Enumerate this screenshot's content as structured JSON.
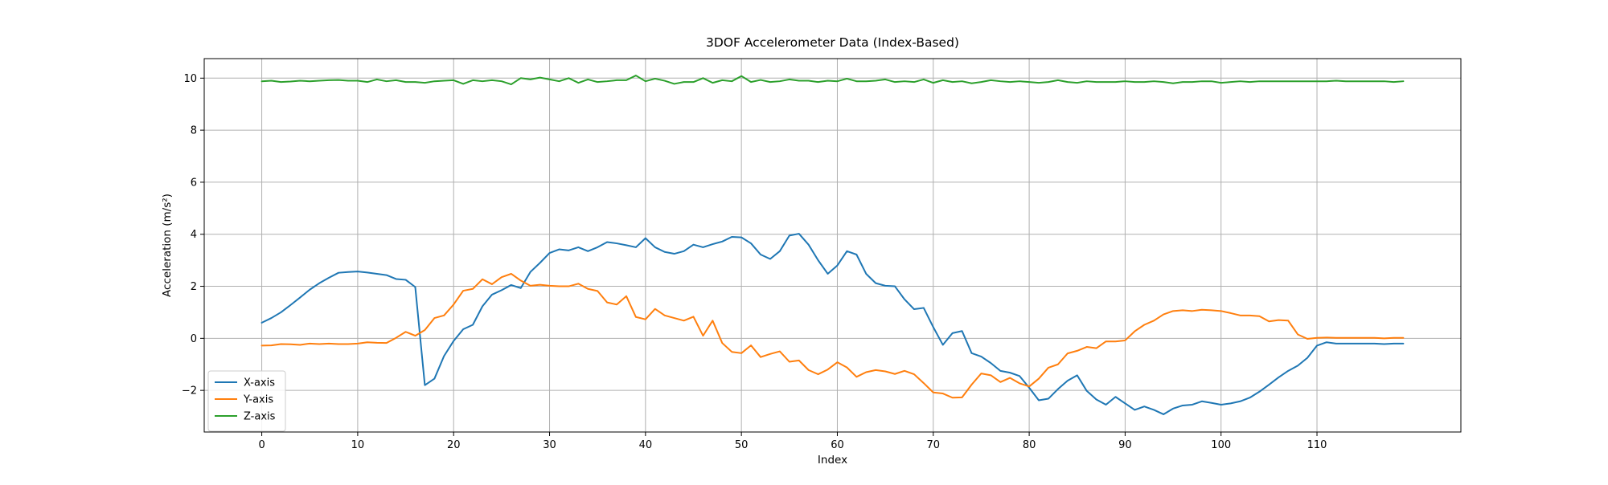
{
  "chart_data": {
    "type": "line",
    "title": "3DOF Accelerometer Data (Index-Based)",
    "xlabel": "Index",
    "ylabel": "Acceleration (m/s²)",
    "xlim": [
      -6,
      125
    ],
    "ylim": [
      -3.6,
      10.75
    ],
    "x_ticks": [
      0,
      10,
      20,
      30,
      40,
      50,
      60,
      70,
      80,
      90,
      100,
      110
    ],
    "y_ticks": [
      -2,
      0,
      2,
      4,
      6,
      8,
      10
    ],
    "x_tick_labels": [
      "0",
      "10",
      "20",
      "30",
      "40",
      "50",
      "60",
      "70",
      "80",
      "90",
      "100",
      "110"
    ],
    "y_tick_labels": [
      "−2",
      "0",
      "2",
      "4",
      "6",
      "8",
      "10"
    ],
    "grid": true,
    "legend_position": "lower-left",
    "x": [
      0,
      1,
      2,
      3,
      4,
      5,
      6,
      7,
      8,
      9,
      10,
      11,
      12,
      13,
      14,
      15,
      16,
      17,
      18,
      19,
      20,
      21,
      22,
      23,
      24,
      25,
      26,
      27,
      28,
      29,
      30,
      31,
      32,
      33,
      34,
      35,
      36,
      37,
      38,
      39,
      40,
      41,
      42,
      43,
      44,
      45,
      46,
      47,
      48,
      49,
      50,
      51,
      52,
      53,
      54,
      55,
      56,
      57,
      58,
      59,
      60,
      61,
      62,
      63,
      64,
      65,
      66,
      67,
      68,
      69,
      70,
      71,
      72,
      73,
      74,
      75,
      76,
      77,
      78,
      79,
      80,
      81,
      82,
      83,
      84,
      85,
      86,
      87,
      88,
      89,
      90,
      91,
      92,
      93,
      94,
      95,
      96,
      97,
      98,
      99,
      100,
      101,
      102,
      103,
      104,
      105,
      106,
      107,
      108,
      109,
      110,
      111,
      112,
      113,
      114,
      115,
      116,
      117,
      118,
      119
    ],
    "series": [
      {
        "name": "X-axis",
        "color": "#1f77b4",
        "values": [
          0.6,
          0.78,
          1.0,
          1.28,
          1.57,
          1.87,
          2.12,
          2.33,
          2.52,
          2.55,
          2.57,
          2.53,
          2.48,
          2.43,
          2.28,
          2.25,
          1.97,
          -1.8,
          -1.55,
          -0.68,
          -0.1,
          0.35,
          0.52,
          1.23,
          1.68,
          1.85,
          2.05,
          1.93,
          2.55,
          2.9,
          3.28,
          3.42,
          3.38,
          3.5,
          3.35,
          3.5,
          3.7,
          3.65,
          3.58,
          3.5,
          3.85,
          3.5,
          3.32,
          3.25,
          3.35,
          3.6,
          3.5,
          3.62,
          3.72,
          3.9,
          3.88,
          3.65,
          3.22,
          3.05,
          3.35,
          3.95,
          4.02,
          3.6,
          3.0,
          2.48,
          2.8,
          3.35,
          3.22,
          2.48,
          2.12,
          2.02,
          2.0,
          1.5,
          1.12,
          1.17,
          0.43,
          -0.25,
          0.2,
          0.28,
          -0.57,
          -0.7,
          -0.95,
          -1.25,
          -1.32,
          -1.45,
          -1.9,
          -2.38,
          -2.32,
          -1.95,
          -1.63,
          -1.42,
          -2.02,
          -2.35,
          -2.55,
          -2.25,
          -2.5,
          -2.75,
          -2.62,
          -2.75,
          -2.92,
          -2.7,
          -2.58,
          -2.55,
          -2.42,
          -2.48,
          -2.55,
          -2.5,
          -2.42,
          -2.28,
          -2.05,
          -1.78,
          -1.5,
          -1.25,
          -1.05,
          -0.75,
          -0.28,
          -0.15,
          -0.2,
          -0.2,
          -0.2,
          -0.2,
          -0.2,
          -0.22,
          -0.2,
          -0.2
        ]
      },
      {
        "name": "Y-axis",
        "color": "#ff7f0e",
        "values": [
          -0.28,
          -0.27,
          -0.22,
          -0.23,
          -0.25,
          -0.2,
          -0.22,
          -0.2,
          -0.22,
          -0.22,
          -0.2,
          -0.15,
          -0.17,
          -0.18,
          0.02,
          0.25,
          0.1,
          0.32,
          0.78,
          0.88,
          1.3,
          1.83,
          1.9,
          2.27,
          2.08,
          2.35,
          2.48,
          2.22,
          2.02,
          2.06,
          2.02,
          2.0,
          2.0,
          2.1,
          1.9,
          1.82,
          1.38,
          1.3,
          1.62,
          0.82,
          0.73,
          1.13,
          0.88,
          0.78,
          0.68,
          0.83,
          0.1,
          0.68,
          -0.18,
          -0.52,
          -0.57,
          -0.27,
          -0.72,
          -0.6,
          -0.5,
          -0.9,
          -0.85,
          -1.22,
          -1.38,
          -1.2,
          -0.92,
          -1.12,
          -1.48,
          -1.3,
          -1.22,
          -1.27,
          -1.37,
          -1.25,
          -1.38,
          -1.72,
          -2.08,
          -2.12,
          -2.28,
          -2.27,
          -1.78,
          -1.35,
          -1.42,
          -1.68,
          -1.52,
          -1.73,
          -1.85,
          -1.55,
          -1.13,
          -1.0,
          -0.58,
          -0.48,
          -0.33,
          -0.38,
          -0.12,
          -0.12,
          -0.08,
          0.27,
          0.52,
          0.68,
          0.92,
          1.05,
          1.08,
          1.05,
          1.1,
          1.08,
          1.05,
          0.97,
          0.88,
          0.88,
          0.85,
          0.65,
          0.7,
          0.68,
          0.15,
          -0.02,
          0.02,
          0.03,
          0.02,
          0.02,
          0.02,
          0.02,
          0.02,
          0.0,
          0.02,
          0.02
        ]
      },
      {
        "name": "Z-axis",
        "color": "#2ca02c",
        "values": [
          9.88,
          9.9,
          9.85,
          9.87,
          9.9,
          9.88,
          9.9,
          9.92,
          9.93,
          9.9,
          9.9,
          9.85,
          9.95,
          9.88,
          9.92,
          9.85,
          9.85,
          9.82,
          9.88,
          9.9,
          9.92,
          9.78,
          9.92,
          9.88,
          9.92,
          9.88,
          9.76,
          10.0,
          9.95,
          10.02,
          9.95,
          9.88,
          10.0,
          9.82,
          9.95,
          9.85,
          9.88,
          9.92,
          9.92,
          10.1,
          9.88,
          9.98,
          9.9,
          9.78,
          9.85,
          9.85,
          10.0,
          9.82,
          9.92,
          9.88,
          10.08,
          9.85,
          9.93,
          9.85,
          9.88,
          9.95,
          9.9,
          9.9,
          9.85,
          9.9,
          9.88,
          9.98,
          9.88,
          9.88,
          9.9,
          9.95,
          9.85,
          9.88,
          9.85,
          9.95,
          9.82,
          9.92,
          9.85,
          9.88,
          9.8,
          9.85,
          9.92,
          9.88,
          9.85,
          9.88,
          9.85,
          9.82,
          9.85,
          9.92,
          9.85,
          9.82,
          9.88,
          9.85,
          9.85,
          9.85,
          9.88,
          9.85,
          9.85,
          9.88,
          9.85,
          9.8,
          9.85,
          9.85,
          9.88,
          9.88,
          9.82,
          9.85,
          9.88,
          9.85,
          9.88,
          9.88,
          9.88,
          9.88,
          9.88,
          9.88,
          9.88,
          9.88,
          9.9,
          9.88,
          9.88,
          9.88,
          9.88,
          9.88,
          9.85,
          9.88
        ]
      }
    ]
  }
}
